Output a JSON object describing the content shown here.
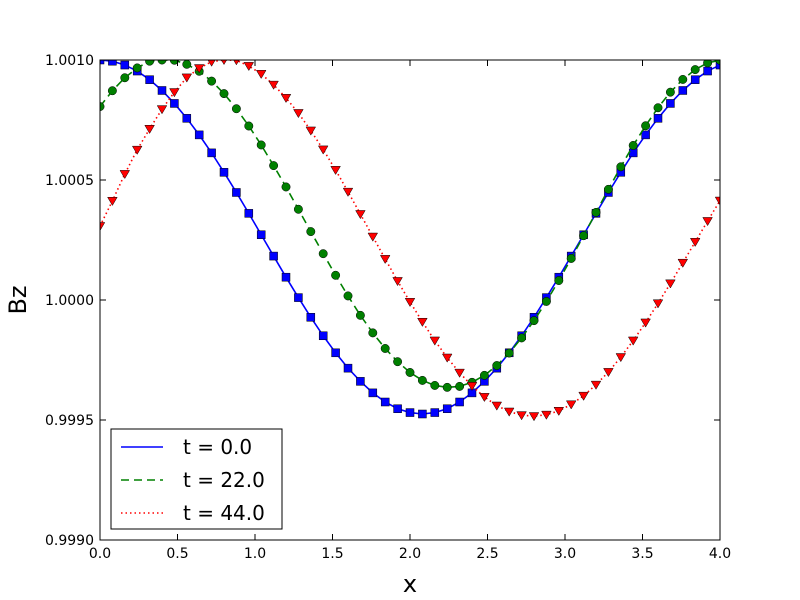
{
  "chart_data": {
    "type": "line",
    "title": "",
    "xlabel": "x",
    "ylabel": "Bz",
    "xlim": [
      0.0,
      4.0
    ],
    "ylim": [
      0.999,
      1.001
    ],
    "xticks": [
      "0.0",
      "0.5",
      "1.0",
      "1.5",
      "2.0",
      "2.5",
      "3.0",
      "3.5",
      "4.0"
    ],
    "yticks": [
      "0.9990",
      "0.9995",
      "1.0000",
      "1.0005",
      "1.0010"
    ],
    "grid": false,
    "legend_position": "lower-left",
    "series": [
      {
        "name": "t = 0.0",
        "color": "#0000ff",
        "line_style": "solid",
        "marker": "square",
        "x": [
          0.0,
          0.08,
          0.16,
          0.24,
          0.32,
          0.4,
          0.48,
          0.56,
          0.64,
          0.72,
          0.8,
          0.88,
          0.96,
          1.04,
          1.12,
          1.2,
          1.28,
          1.36,
          1.44,
          1.52,
          1.6,
          1.68,
          1.76,
          1.84,
          1.92,
          2.0,
          2.08,
          2.16,
          2.24,
          2.32,
          2.4,
          2.48,
          2.56,
          2.64,
          2.72,
          2.8,
          2.88,
          2.96,
          3.04,
          3.12,
          3.2,
          3.28,
          3.36,
          3.44,
          3.52,
          3.6,
          3.68,
          3.76,
          3.84,
          3.92,
          4.0
        ],
        "y": [
          1.001,
          1.000995,
          1.000979,
          1.000954,
          1.000918,
          1.000873,
          1.000819,
          1.000757,
          1.000688,
          1.000613,
          1.000532,
          1.000448,
          1.000361,
          1.000272,
          1.000183,
          1.000095,
          1.00001,
          0.999928,
          0.999851,
          0.99978,
          0.999716,
          0.999661,
          0.999613,
          0.999575,
          0.999547,
          0.999531,
          0.999525,
          0.999531,
          0.999547,
          0.999575,
          0.999613,
          0.999661,
          0.999716,
          0.99978,
          0.999851,
          0.999928,
          1.00001,
          1.000095,
          1.000183,
          1.000272,
          1.000361,
          1.000448,
          1.000532,
          1.000613,
          1.000688,
          1.000757,
          1.000819,
          1.000873,
          1.000918,
          1.000954,
          1.000979
        ]
      },
      {
        "name": "t = 22.0",
        "color": "#008000",
        "line_style": "dashed",
        "marker": "circle",
        "x": [
          0.0,
          0.08,
          0.16,
          0.24,
          0.32,
          0.4,
          0.48,
          0.56,
          0.64,
          0.72,
          0.8,
          0.88,
          0.96,
          1.04,
          1.12,
          1.2,
          1.28,
          1.36,
          1.44,
          1.52,
          1.6,
          1.68,
          1.76,
          1.84,
          1.92,
          2.0,
          2.08,
          2.16,
          2.24,
          2.32,
          2.4,
          2.48,
          2.56,
          2.64,
          2.72,
          2.8,
          2.88,
          2.96,
          3.04,
          3.12,
          3.2,
          3.28,
          3.36,
          3.44,
          3.52,
          3.6,
          3.68,
          3.76,
          3.84,
          3.92,
          4.0
        ],
        "y": [
          1.000806,
          1.000872,
          1.000926,
          1.000967,
          1.000995,
          1.001,
          1.000999,
          1.000982,
          1.000953,
          1.000912,
          1.00086,
          1.000797,
          1.000725,
          1.000646,
          1.00056,
          1.000471,
          1.000378,
          1.000285,
          1.000193,
          1.000103,
          1.000017,
          0.999936,
          0.999863,
          0.999798,
          0.999743,
          0.999698,
          0.999665,
          0.999644,
          0.999636,
          0.99964,
          0.999657,
          0.999686,
          0.999727,
          0.999779,
          0.999842,
          0.999914,
          0.999994,
          1.000081,
          1.000173,
          1.000268,
          1.000365,
          1.000461,
          1.000555,
          1.000644,
          1.000726,
          1.000801,
          1.000866,
          1.000919,
          1.00096,
          1.000988,
          1.000999
        ]
      },
      {
        "name": "t = 44.0",
        "color": "#ff0000",
        "line_style": "dotted",
        "marker": "triangle-down",
        "x": [
          0.0,
          0.08,
          0.16,
          0.24,
          0.32,
          0.4,
          0.48,
          0.56,
          0.64,
          0.72,
          0.8,
          0.88,
          0.96,
          1.04,
          1.12,
          1.2,
          1.28,
          1.36,
          1.44,
          1.52,
          1.6,
          1.68,
          1.76,
          1.84,
          1.92,
          2.0,
          2.08,
          2.16,
          2.24,
          2.32,
          2.4,
          2.48,
          2.56,
          2.64,
          2.72,
          2.8,
          2.88,
          2.96,
          3.04,
          3.12,
          3.2,
          3.28,
          3.36,
          3.44,
          3.52,
          3.6,
          3.68,
          3.76,
          3.84,
          3.92,
          4.0
        ],
        "y": [
          1.000308,
          1.000413,
          1.000525,
          1.000626,
          1.000713,
          1.000795,
          1.000866,
          1.000927,
          1.000966,
          1.000993,
          1.001,
          1.000999,
          1.000975,
          1.000942,
          1.000897,
          1.000842,
          1.000779,
          1.000706,
          1.000627,
          1.000542,
          1.000451,
          1.000358,
          1.000264,
          1.000171,
          1.000079,
          0.999992,
          0.999909,
          0.999831,
          0.99976,
          0.999697,
          0.999642,
          0.999596,
          0.99956,
          0.999535,
          0.99952,
          0.999516,
          0.999522,
          0.999538,
          0.999565,
          0.999601,
          0.999647,
          0.9997,
          0.999762,
          0.999831,
          0.999906,
          0.999986,
          1.000069,
          1.000155,
          1.000242,
          1.000329,
          1.000414
        ]
      }
    ]
  }
}
